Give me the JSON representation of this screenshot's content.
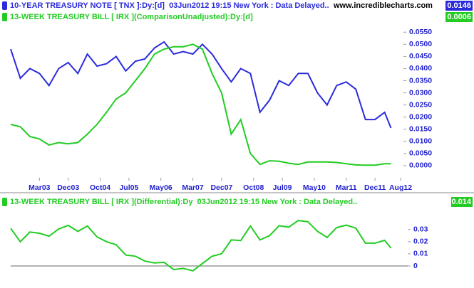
{
  "watermark": "www.incrediblecharts.com",
  "chart_data": [
    {
      "type": "line",
      "x": [
        "2002-06",
        "2002-09",
        "2002-12",
        "2003-03",
        "2003-06",
        "2003-09",
        "2003-12",
        "2004-03",
        "2004-06",
        "2004-09",
        "2004-12",
        "2005-03",
        "2005-06",
        "2005-09",
        "2005-12",
        "2006-03",
        "2006-06",
        "2006-09",
        "2006-12",
        "2007-03",
        "2007-06",
        "2007-09",
        "2007-12",
        "2008-03",
        "2008-06",
        "2008-09",
        "2008-12",
        "2009-03",
        "2009-06",
        "2009-09",
        "2009-12",
        "2010-03",
        "2010-06",
        "2010-09",
        "2010-12",
        "2011-03",
        "2011-06",
        "2011-09",
        "2011-12",
        "2012-03",
        "2012-05"
      ],
      "xlim": [
        "2002-06",
        "2012-08"
      ],
      "xticks": [
        {
          "value": "2003-03",
          "label": "Mar03"
        },
        {
          "value": "2003-12",
          "label": "Dec03"
        },
        {
          "value": "2004-10",
          "label": "Oct04"
        },
        {
          "value": "2005-07",
          "label": "Jul05"
        },
        {
          "value": "2006-05",
          "label": "May06"
        },
        {
          "value": "2007-03",
          "label": "Mar07"
        },
        {
          "value": "2007-12",
          "label": "Dec07"
        },
        {
          "value": "2008-10",
          "label": "Oct08"
        },
        {
          "value": "2009-07",
          "label": "Jul09"
        },
        {
          "value": "2010-05",
          "label": "May10"
        },
        {
          "value": "2011-03",
          "label": "Mar11"
        },
        {
          "value": "2011-12",
          "label": "Dec11"
        },
        {
          "value": "2012-08",
          "label": "Aug12"
        }
      ],
      "ylim": [
        -0.005,
        0.058
      ],
      "yticks": [
        {
          "value": 0,
          "label": "0.0000"
        },
        {
          "value": 0.005,
          "label": "0.0050"
        },
        {
          "value": 0.01,
          "label": "0.0100"
        },
        {
          "value": 0.015,
          "label": "0.0150"
        },
        {
          "value": 0.02,
          "label": "0.0200"
        },
        {
          "value": 0.025,
          "label": "0.0250"
        },
        {
          "value": 0.03,
          "label": "0.0300"
        },
        {
          "value": 0.035,
          "label": "0.0350"
        },
        {
          "value": 0.04,
          "label": "0.0400"
        },
        {
          "value": 0.045,
          "label": "0.0450"
        },
        {
          "value": 0.05,
          "label": "0.0500"
        },
        {
          "value": 0.055,
          "label": "0.0550"
        }
      ],
      "series": [
        {
          "name": "10-YEAR TREASURY NOTE [ TNX ]:Dy:[d]  03Jun2012 19:15 New York : Data Delayed..",
          "color": "#2b2bdc",
          "last_value": 0.0146,
          "values": [
            0.048,
            0.036,
            0.04,
            0.038,
            0.033,
            0.04,
            0.0425,
            0.038,
            0.046,
            0.041,
            0.042,
            0.045,
            0.039,
            0.043,
            0.044,
            0.0485,
            0.051,
            0.046,
            0.047,
            0.046,
            0.05,
            0.046,
            0.04,
            0.0345,
            0.04,
            0.038,
            0.022,
            0.027,
            0.035,
            0.033,
            0.038,
            0.038,
            0.03,
            0.025,
            0.033,
            0.0345,
            0.0315,
            0.019,
            0.019,
            0.022,
            0.0155
          ]
        },
        {
          "name": "13-WEEK TREASURY BILL [ IRX ](ComparisonUnadjusted):Dy:[d]",
          "color": "#22cc22",
          "last_value": 0.0006,
          "values": [
            0.017,
            0.016,
            0.012,
            0.011,
            0.0085,
            0.0095,
            0.009,
            0.0095,
            0.013,
            0.017,
            0.022,
            0.0275,
            0.03,
            0.035,
            0.04,
            0.046,
            0.048,
            0.049,
            0.049,
            0.05,
            0.048,
            0.038,
            0.03,
            0.013,
            0.019,
            0.005,
            0.0005,
            0.002,
            0.0018,
            0.001,
            0.0005,
            0.0015,
            0.0015,
            0.0015,
            0.0013,
            0.0008,
            0.0003,
            0.0002,
            0.0002,
            0.0008,
            0.0008
          ]
        }
      ]
    },
    {
      "type": "line",
      "x": [
        "2002-06",
        "2002-09",
        "2002-12",
        "2003-03",
        "2003-06",
        "2003-09",
        "2003-12",
        "2004-03",
        "2004-06",
        "2004-09",
        "2004-12",
        "2005-03",
        "2005-06",
        "2005-09",
        "2005-12",
        "2006-03",
        "2006-06",
        "2006-09",
        "2006-12",
        "2007-03",
        "2007-06",
        "2007-09",
        "2007-12",
        "2008-03",
        "2008-06",
        "2008-09",
        "2008-12",
        "2009-03",
        "2009-06",
        "2009-09",
        "2009-12",
        "2010-03",
        "2010-06",
        "2010-09",
        "2010-12",
        "2011-03",
        "2011-06",
        "2011-09",
        "2011-12",
        "2012-03",
        "2012-05"
      ],
      "xlim": [
        "2002-06",
        "2012-08"
      ],
      "ylim": [
        -0.01,
        0.054
      ],
      "yticks": [
        0,
        0.01,
        0.02,
        0.03
      ],
      "series": [
        {
          "name": "13-WEEK TREASURY BILL [ IRX ](Differential):Dy  03Jun2012 19:15 New York : Data Delayed..",
          "color": "#22cc22",
          "last_value": 0.014,
          "values": [
            0.031,
            0.02,
            0.028,
            0.027,
            0.0245,
            0.0305,
            0.0335,
            0.0285,
            0.033,
            0.024,
            0.02,
            0.0175,
            0.009,
            0.008,
            0.004,
            0.0025,
            0.003,
            -0.003,
            -0.002,
            -0.004,
            0.002,
            0.008,
            0.01,
            0.0215,
            0.021,
            0.033,
            0.0215,
            0.025,
            0.0332,
            0.032,
            0.0375,
            0.0365,
            0.0285,
            0.0235,
            0.0317,
            0.0337,
            0.0312,
            0.0188,
            0.0188,
            0.0212,
            0.0147
          ]
        }
      ]
    }
  ]
}
